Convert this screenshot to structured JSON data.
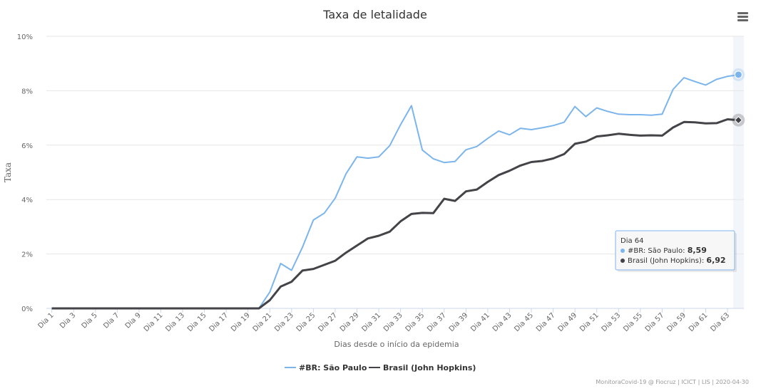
{
  "chart_data": {
    "type": "line",
    "title": "Taxa de letalidade",
    "xlabel": "Dias desde o início da epidemia",
    "ylabel": "Taxa",
    "ylim": [
      0,
      10
    ],
    "y_ticks": [
      "0%",
      "2%",
      "4%",
      "6%",
      "8%",
      "10%"
    ],
    "x_tick_labels": [
      "Dia 1",
      "Dia 3",
      "Dia 5",
      "Dia 7",
      "Dia 9",
      "Dia 11",
      "Dia 13",
      "Dia 15",
      "Dia 17",
      "Dia 19",
      "Dia 21",
      "Dia 23",
      "Dia 25",
      "Dia 27",
      "Dia 29",
      "Dia 31",
      "Dia 33",
      "Dia 35",
      "Dia 37",
      "Dia 39",
      "Dia 41",
      "Dia 43",
      "Dia 45",
      "Dia 47",
      "Dia 49",
      "Dia 51",
      "Dia 53",
      "Dia 55",
      "Dia 57",
      "Dia 59",
      "Dia 61",
      "Dia 63"
    ],
    "x_start_day": 1,
    "grid": true,
    "legend_position": "bottom-center",
    "series": [
      {
        "name": "#BR: São Paulo",
        "color": "#7cb5ec",
        "values": [
          0,
          0,
          0,
          0,
          0,
          0,
          0,
          0,
          0,
          0,
          0,
          0,
          0,
          0,
          0,
          0,
          0,
          0,
          0,
          0,
          0.6,
          1.65,
          1.4,
          2.25,
          3.25,
          3.5,
          4.05,
          4.95,
          5.57,
          5.52,
          5.57,
          5.98,
          6.75,
          7.45,
          5.82,
          5.5,
          5.36,
          5.4,
          5.83,
          5.95,
          6.25,
          6.52,
          6.38,
          6.62,
          6.57,
          6.64,
          6.72,
          6.84,
          7.42,
          7.05,
          7.37,
          7.24,
          7.14,
          7.12,
          7.12,
          7.1,
          7.14,
          8.05,
          8.48,
          8.34,
          8.21,
          8.42,
          8.53,
          8.59
        ]
      },
      {
        "name": "Brasil (John Hopkins)",
        "color": "#434348",
        "values": [
          0,
          0,
          0,
          0,
          0,
          0,
          0,
          0,
          0,
          0,
          0,
          0,
          0,
          0,
          0,
          0,
          0,
          0,
          0,
          0,
          0.3,
          0.8,
          0.98,
          1.39,
          1.45,
          1.6,
          1.75,
          2.05,
          2.31,
          2.57,
          2.67,
          2.82,
          3.2,
          3.47,
          3.51,
          3.5,
          4.03,
          3.95,
          4.3,
          4.37,
          4.65,
          4.9,
          5.06,
          5.25,
          5.38,
          5.42,
          5.51,
          5.67,
          6.05,
          6.13,
          6.32,
          6.36,
          6.42,
          6.38,
          6.35,
          6.36,
          6.35,
          6.65,
          6.85,
          6.84,
          6.8,
          6.81,
          6.95,
          6.92
        ]
      }
    ]
  },
  "tooltip": {
    "header": "Dia 64",
    "rows": [
      {
        "label": "#BR: São Paulo: ",
        "value": "8,59"
      },
      {
        "label": "Brasil (John Hopkins): ",
        "value": "6,92"
      }
    ]
  },
  "credits": "MonitoraCovid-19 @ Fiocruz | ICICT | LIS | 2020-04-30",
  "menu_icon": "hamburger-menu-icon"
}
